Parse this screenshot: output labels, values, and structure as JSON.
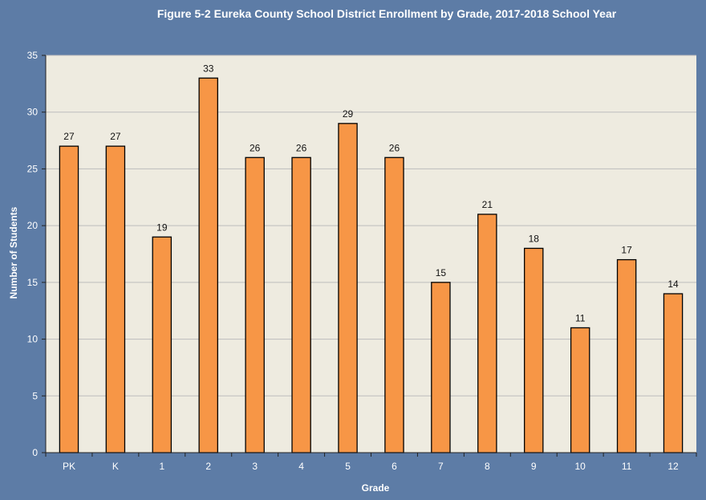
{
  "chart_data": {
    "type": "bar",
    "title": "Figure 5-2 Eureka County School District Enrollment by Grade, 2017-2018 School Year",
    "xlabel": "Grade",
    "ylabel": "Number of Students",
    "categories": [
      "PK",
      "K",
      "1",
      "2",
      "3",
      "4",
      "5",
      "6",
      "7",
      "8",
      "9",
      "10",
      "11",
      "12"
    ],
    "values": [
      27,
      27,
      19,
      33,
      26,
      26,
      29,
      26,
      15,
      21,
      18,
      11,
      17,
      14
    ],
    "ylim": [
      0,
      35
    ],
    "yticks": [
      0,
      5,
      10,
      15,
      20,
      25,
      30,
      35
    ],
    "grid": true,
    "data_labels": true,
    "legend": "none",
    "colors": {
      "bar_fill": "#f79646",
      "bar_stroke": "#000000",
      "plot_background": "#eeebe0",
      "outer_background": "#5d7ca6",
      "gridline": "#bdbdbd",
      "text": "#ffffff",
      "data_label": "#111111"
    }
  }
}
